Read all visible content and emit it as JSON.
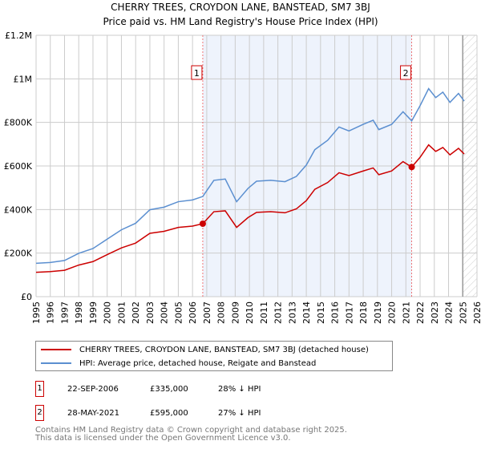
{
  "title_line1": "CHERRY TREES, CROYDON LANE, BANSTEAD, SM7 3BJ",
  "title_line2": "Price paid vs. HM Land Registry's House Price Index (HPI)",
  "colors": {
    "property": "#cc0000",
    "hpi": "#5b8fd0",
    "shade": "#eef3fc"
  },
  "chart_data": {
    "type": "line",
    "title": "CHERRY TREES, CROYDON LANE, BANSTEAD, SM7 3BJ - Price paid vs. HM Land Registry's House Price Index (HPI)",
    "xlim": [
      1995,
      2026
    ],
    "ylim": [
      0,
      1200000
    ],
    "y_ticks": [
      {
        "v": 0,
        "label": "£0"
      },
      {
        "v": 200000,
        "label": "£200K"
      },
      {
        "v": 400000,
        "label": "£400K"
      },
      {
        "v": 600000,
        "label": "£600K"
      },
      {
        "v": 800000,
        "label": "£800K"
      },
      {
        "v": 1000000,
        "label": "£1M"
      },
      {
        "v": 1200000,
        "label": "£1.2M"
      }
    ],
    "x_ticks": [
      "1995",
      "1996",
      "1997",
      "1998",
      "1999",
      "2000",
      "2001",
      "2002",
      "2003",
      "2004",
      "2005",
      "2006",
      "2007",
      "2008",
      "2009",
      "2010",
      "2011",
      "2012",
      "2013",
      "2014",
      "2015",
      "2016",
      "2017",
      "2018",
      "2019",
      "2020",
      "2021",
      "2022",
      "2023",
      "2024",
      "2025",
      "2026"
    ],
    "x": [
      1995,
      1996,
      1997,
      1998,
      1999,
      2000,
      2001,
      2002,
      2003,
      2004,
      2005,
      2006,
      2006.72,
      2007.5,
      2008.3,
      2009.1,
      2009.9,
      2010.5,
      2011.5,
      2012.5,
      2013.3,
      2014,
      2014.6,
      2015.5,
      2016.3,
      2017,
      2018,
      2018.7,
      2019.1,
      2020,
      2020.8,
      2021.41,
      2022,
      2022.6,
      2023.1,
      2023.6,
      2024.1,
      2024.7,
      2025.1
    ],
    "series": [
      {
        "name": "CHERRY TREES, CROYDON LANE, BANSTEAD, SM7 3BJ (detached house)",
        "color": "#cc0000",
        "values": [
          112000,
          115000,
          121000,
          145000,
          161000,
          193000,
          224000,
          246000,
          291000,
          300000,
          318000,
          324000,
          335000,
          390000,
          394000,
          318000,
          363000,
          387000,
          390000,
          385000,
          403000,
          441000,
          493000,
          524000,
          569000,
          556000,
          577000,
          591000,
          560000,
          577000,
          620000,
          595000,
          640000,
          697000,
          667000,
          685000,
          651000,
          681000,
          655000
        ]
      },
      {
        "name": "HPI: Average price, detached house, Reigate and Banstead",
        "color": "#5b8fd0",
        "values": [
          153000,
          157000,
          166000,
          199000,
          221000,
          264000,
          307000,
          337000,
          399000,
          411000,
          436000,
          444000,
          460000,
          534000,
          540000,
          436000,
          497000,
          530000,
          534000,
          528000,
          552000,
          604000,
          675000,
          718000,
          779000,
          761000,
          791000,
          810000,
          767000,
          791000,
          849000,
          807000,
          877000,
          955000,
          914000,
          939000,
          892000,
          933000,
          898000
        ]
      }
    ],
    "sales": [
      {
        "label": "1",
        "x": 2006.72,
        "value": 335000
      },
      {
        "label": "2",
        "x": 2021.41,
        "value": 595000
      }
    ],
    "forecast_from": 2025.0,
    "grid": true
  },
  "legend": {
    "property": "CHERRY TREES, CROYDON LANE, BANSTEAD, SM7 3BJ (detached house)",
    "hpi": "HPI: Average price, detached house, Reigate and Banstead"
  },
  "sales_table": [
    {
      "num": "1",
      "date": "22-SEP-2006",
      "price": "£335,000",
      "diff": "28% ↓ HPI"
    },
    {
      "num": "2",
      "date": "28-MAY-2021",
      "price": "£595,000",
      "diff": "27% ↓ HPI"
    }
  ],
  "footer": {
    "line1": "Contains HM Land Registry data © Crown copyright and database right 2025.",
    "line2": "This data is licensed under the Open Government Licence v3.0."
  }
}
